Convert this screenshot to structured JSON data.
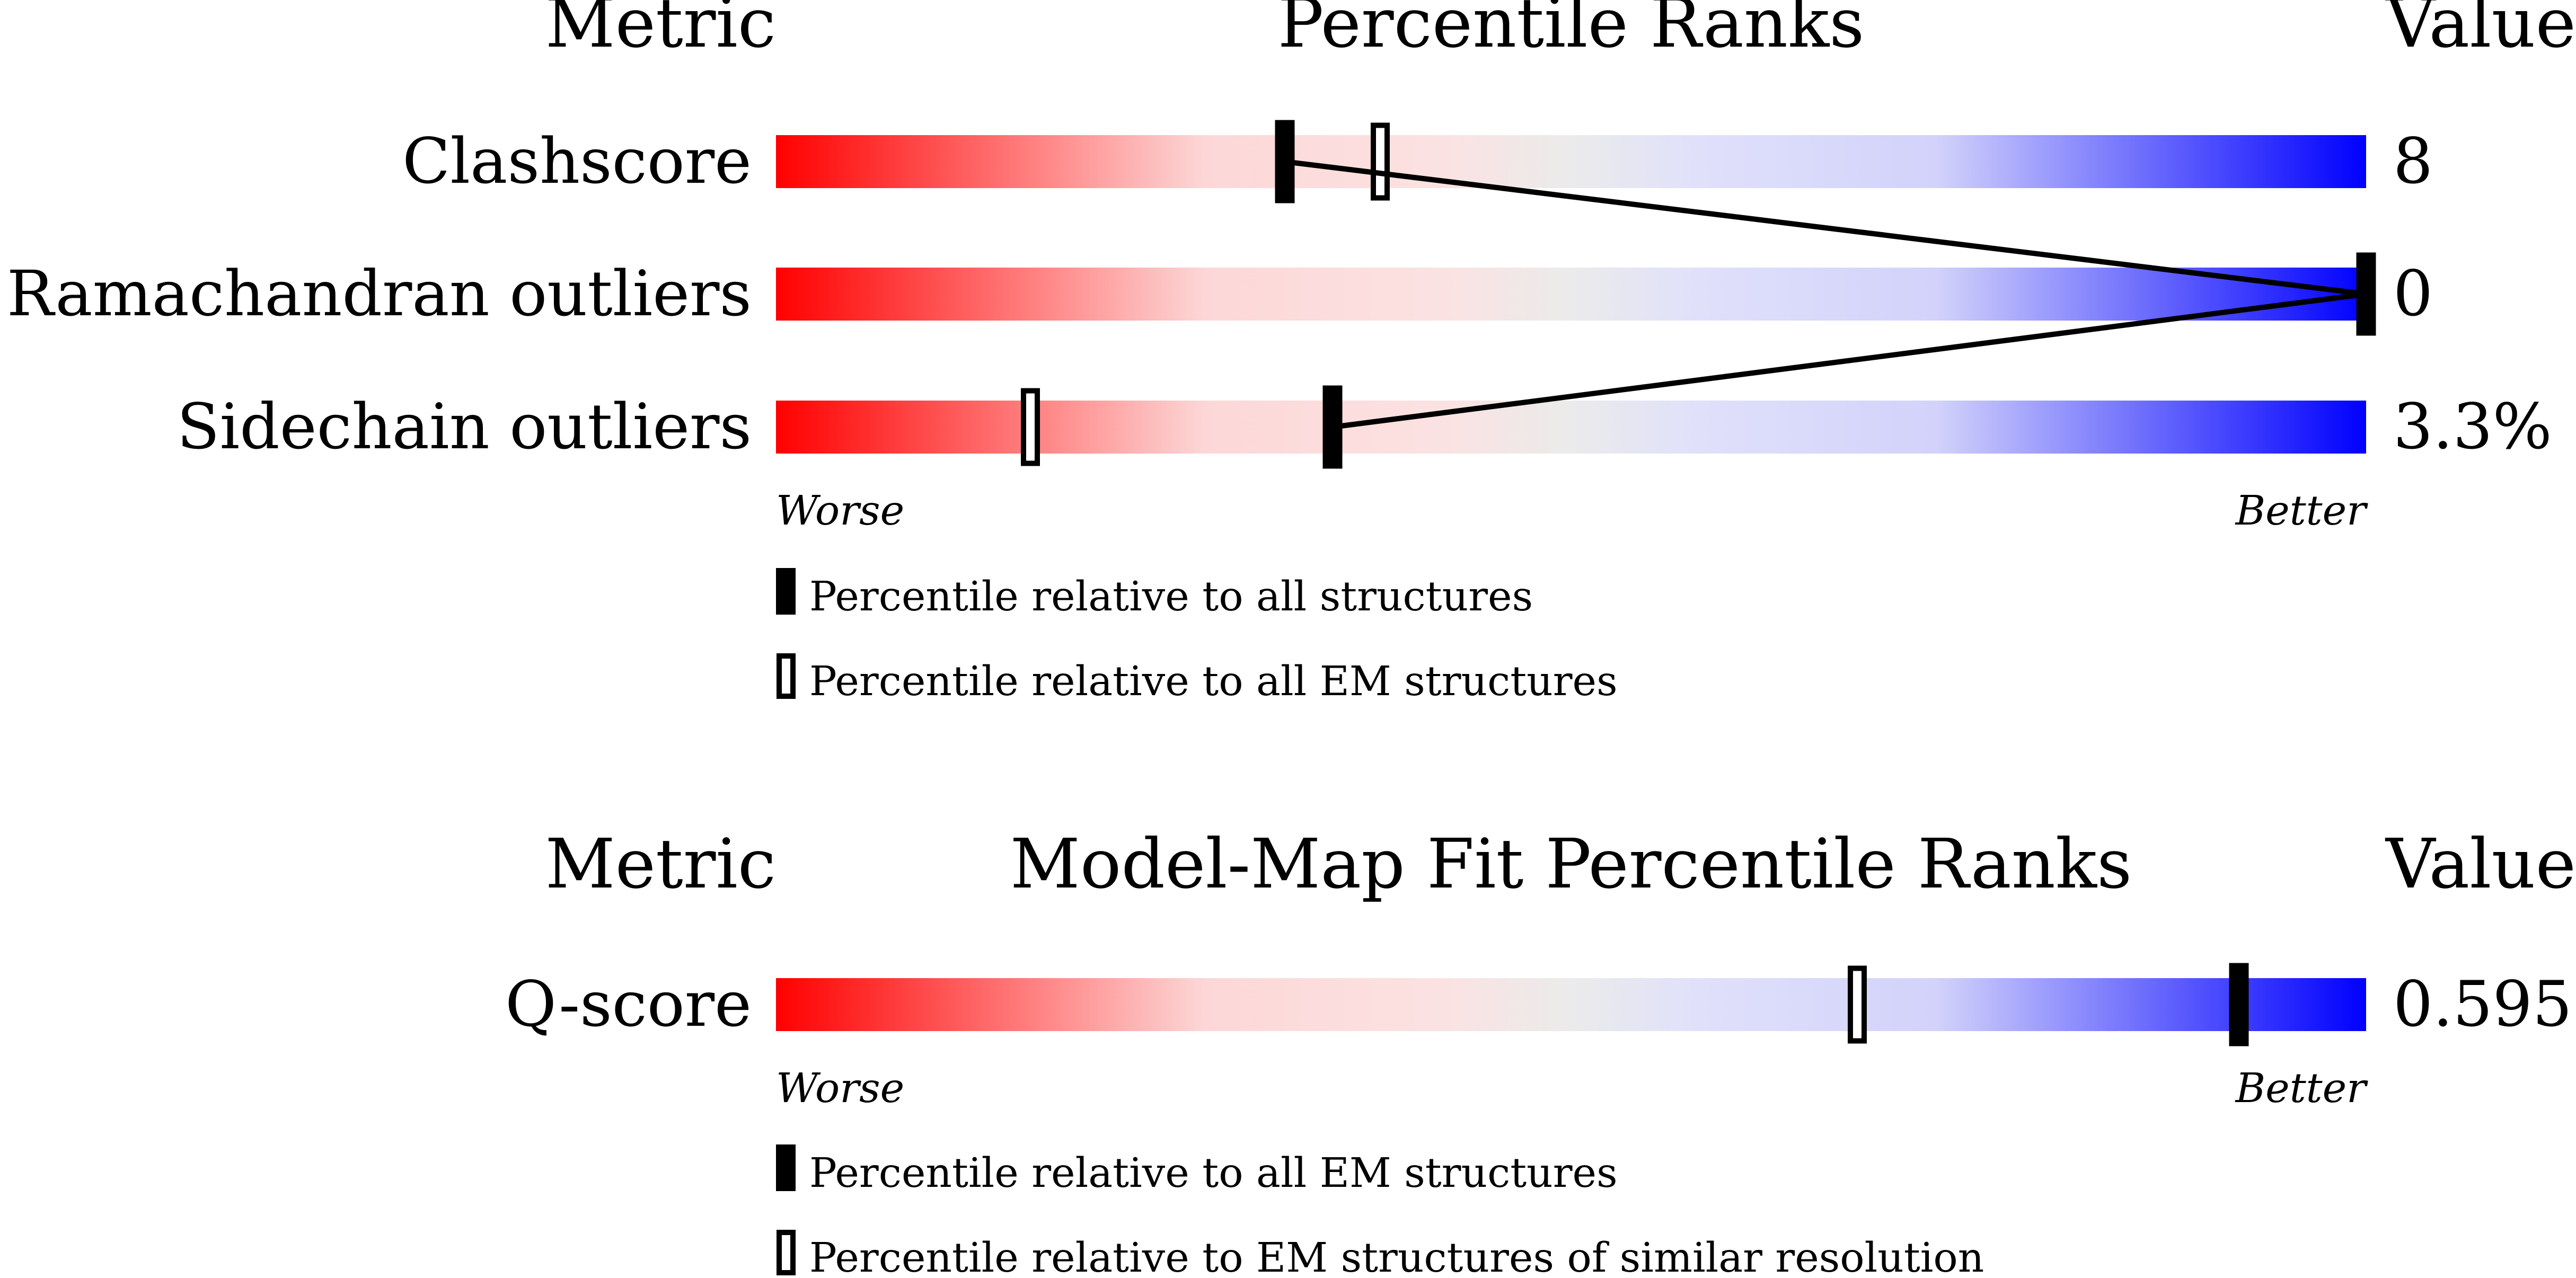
{
  "chart_data": [
    {
      "type": "bar",
      "title": "Percentile Ranks",
      "metric_header": "Metric",
      "value_header": "Value",
      "x_range": [
        0,
        100
      ],
      "worse_label": "Worse",
      "better_label": "Better",
      "gradient_colors": [
        "#ff0000",
        "#ffffff",
        "#0000ff"
      ],
      "metrics": [
        {
          "name": "Clashscore",
          "value": "8",
          "percentile_all": 32,
          "percentile_em": 38
        },
        {
          "name": "Ramachandran outliers",
          "value": "0",
          "percentile_all": 100,
          "percentile_em": 100
        },
        {
          "name": "Sidechain outliers",
          "value": "3.3%",
          "percentile_all": 35,
          "percentile_em": 16
        }
      ],
      "legend": [
        {
          "marker": "filled",
          "label": "Percentile relative to all structures"
        },
        {
          "marker": "open",
          "label": "Percentile relative to all EM structures"
        }
      ]
    },
    {
      "type": "bar",
      "title": "Model-Map Fit Percentile Ranks",
      "metric_header": "Metric",
      "value_header": "Value",
      "x_range": [
        0,
        100
      ],
      "worse_label": "Worse",
      "better_label": "Better",
      "gradient_colors": [
        "#ff0000",
        "#ffffff",
        "#0000ff"
      ],
      "metrics": [
        {
          "name": "Q-score",
          "value": "0.595",
          "percentile_all": 92,
          "percentile_em": 68
        }
      ],
      "legend": [
        {
          "marker": "filled",
          "label": "Percentile relative to all EM structures"
        },
        {
          "marker": "open",
          "label": "Percentile relative to EM structures of similar resolution"
        }
      ]
    }
  ]
}
